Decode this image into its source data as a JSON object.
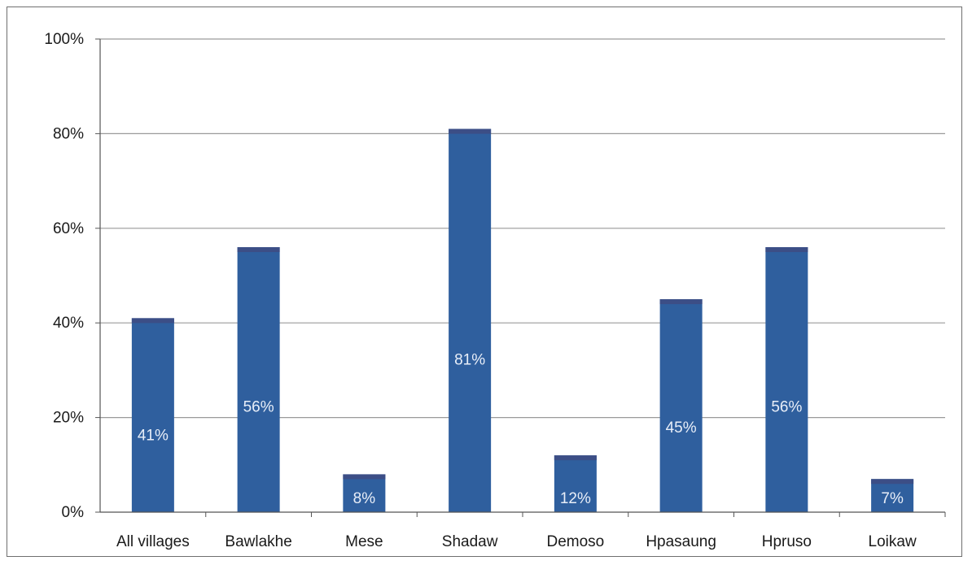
{
  "chart_data": {
    "type": "bar",
    "title": "",
    "xlabel": "",
    "ylabel": "",
    "categories": [
      "All villages",
      "Bawlakhe",
      "Mese",
      "Shadaw",
      "Demoso",
      "Hpasaung",
      "Hpruso",
      "Loikaw"
    ],
    "values": [
      41,
      56,
      8,
      81,
      12,
      45,
      56,
      7
    ],
    "data_labels": [
      "41%",
      "56%",
      "8%",
      "81%",
      "12%",
      "45%",
      "56%",
      "7%"
    ],
    "ylim": [
      0,
      100
    ],
    "y_ticks": [
      0,
      20,
      40,
      60,
      80,
      100
    ],
    "y_tick_labels": [
      "0%",
      "20%",
      "40%",
      "60%",
      "80%",
      "100%"
    ],
    "grid": true,
    "legend": "none",
    "bar_color": "#2f5f9e",
    "bar_top_color": "#3c4e86",
    "label_color": "#e8eef8"
  }
}
